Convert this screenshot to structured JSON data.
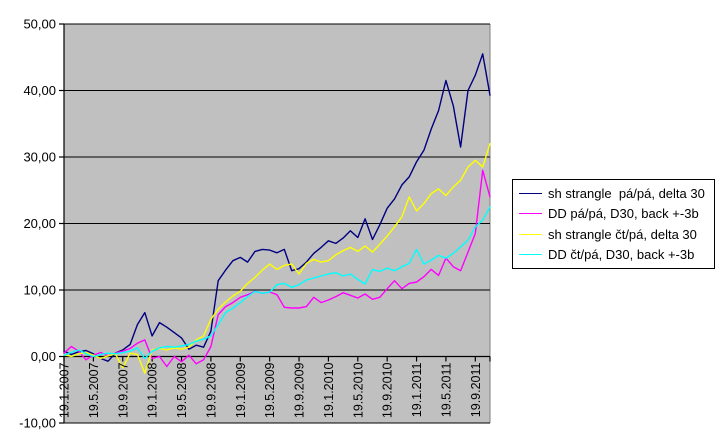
{
  "chart_data": {
    "type": "line",
    "title": "",
    "xlabel": "",
    "ylabel": "",
    "grid": true,
    "plot_bg_color": "#c0c0c0",
    "gridline_color": "#000000",
    "plot_border_color": "#808080",
    "legend_position": "right",
    "legend_border_color": "#000000",
    "y_axis": {
      "min": -10,
      "max": 50,
      "step": 10,
      "tick_values": [
        50,
        40,
        30,
        20,
        10,
        0,
        -10
      ],
      "tick_labels": [
        "50,00",
        "40,00",
        "30,00",
        "20,00",
        "10,00",
        "0,00",
        "-10,00"
      ]
    },
    "x_axis": {
      "label_every": 4,
      "label_rotation": -90,
      "tick_labels": [
        "19.1.2007",
        "19.5.2007",
        "19.9.2007",
        "19.1.2008",
        "19.5.2008",
        "19.9.2008",
        "19.1.2009",
        "19.5.2009",
        "19.9.2009",
        "19.1.2010",
        "19.5.2010",
        "19.9.2010",
        "19.1.2011",
        "19.5.2011",
        "19.9.2011"
      ]
    },
    "series": [
      {
        "name": "sh strangle  pá/pá, delta 30",
        "color": "#000080",
        "values": [
          0.8,
          0.3,
          0.7,
          0.9,
          0.4,
          -0.3,
          -0.7,
          0.5,
          1.0,
          1.8,
          4.8,
          6.6,
          3.1,
          5.1,
          4.4,
          3.6,
          2.8,
          1.1,
          1.7,
          1.4,
          3.8,
          11.4,
          13.0,
          14.4,
          14.9,
          14.2,
          15.8,
          16.1,
          16.0,
          15.6,
          16.1,
          12.9,
          13.2,
          14.2,
          15.5,
          16.4,
          17.4,
          17.0,
          17.8,
          18.9,
          17.9,
          20.7,
          17.6,
          19.8,
          22.3,
          23.7,
          25.8,
          27.0,
          29.3,
          31.0,
          34.2,
          37.0,
          41.5,
          37.7,
          31.5,
          40.0,
          42.3,
          45.5,
          39.3
        ]
      },
      {
        "name": "DD pá/pá, D30, back +-3b",
        "color": "#ff00ff",
        "values": [
          0.5,
          1.5,
          0.8,
          -0.5,
          0.2,
          0.6,
          0.1,
          0.5,
          0.8,
          1.2,
          2.0,
          2.5,
          -0.3,
          0.0,
          -1.5,
          0.0,
          -0.8,
          0.2,
          -1.1,
          -0.5,
          1.5,
          6.3,
          7.5,
          8.1,
          8.9,
          9.3,
          9.8,
          9.5,
          9.7,
          9.3,
          7.4,
          7.3,
          7.3,
          7.5,
          8.9,
          8.1,
          8.5,
          9.0,
          9.6,
          9.2,
          8.8,
          9.4,
          8.6,
          8.9,
          10.2,
          11.4,
          10.2,
          11.0,
          11.2,
          12.0,
          13.1,
          12.2,
          14.8,
          13.5,
          12.9,
          15.7,
          18.5,
          28.0,
          24.0
        ]
      },
      {
        "name": "sh strangle čt/pá, delta 30",
        "color": "#ffff00",
        "values": [
          0.3,
          0.0,
          0.4,
          0.6,
          0.2,
          -0.3,
          0.1,
          0.4,
          -1.7,
          0.5,
          0.3,
          -2.5,
          1.0,
          1.2,
          1.0,
          1.3,
          1.1,
          1.4,
          2.5,
          3.1,
          5.6,
          7.1,
          8.2,
          9.1,
          9.8,
          11.0,
          11.9,
          13.0,
          13.9,
          13.1,
          13.7,
          13.9,
          12.4,
          14.0,
          14.6,
          14.2,
          14.4,
          15.3,
          15.9,
          16.4,
          15.8,
          16.6,
          15.7,
          16.9,
          18.1,
          19.5,
          21.0,
          24.0,
          21.9,
          23.0,
          24.5,
          25.2,
          24.2,
          25.5,
          26.5,
          28.5,
          29.5,
          28.5,
          32.0
        ]
      },
      {
        "name": "DD čt/pá, D30, back +-3b",
        "color": "#00ffff",
        "values": [
          0.2,
          0.6,
          1.0,
          0.4,
          0.0,
          0.3,
          0.5,
          0.4,
          0.6,
          0.8,
          1.3,
          -0.3,
          0.8,
          1.3,
          1.5,
          1.4,
          1.6,
          1.8,
          2.3,
          2.6,
          3.1,
          4.8,
          6.6,
          7.3,
          8.1,
          9.0,
          9.8,
          9.5,
          9.7,
          10.8,
          11.0,
          10.4,
          10.8,
          11.5,
          11.8,
          12.1,
          12.4,
          12.6,
          12.1,
          12.4,
          11.6,
          10.9,
          13.1,
          12.8,
          13.3,
          12.9,
          13.5,
          14.0,
          16.1,
          13.9,
          14.5,
          15.2,
          14.8,
          15.5,
          16.5,
          17.5,
          19.5,
          20.5,
          22.5
        ]
      }
    ]
  }
}
